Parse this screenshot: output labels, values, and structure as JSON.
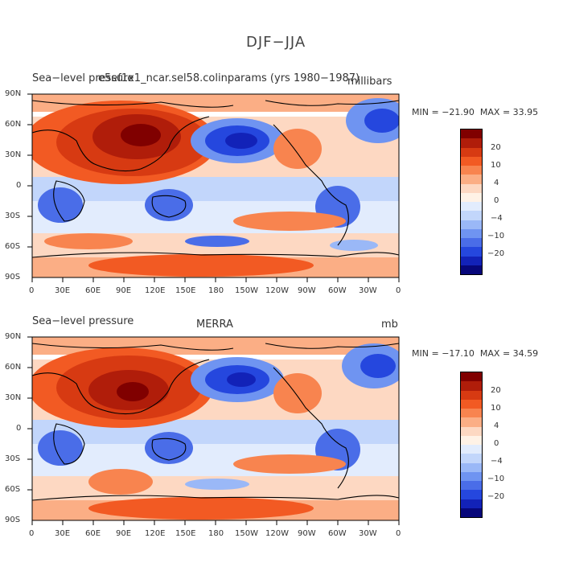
{
  "figure": {
    "title": "DJF−JJA",
    "lon_ticks": [
      "0",
      "30E",
      "60E",
      "90E",
      "120E",
      "150E",
      "180",
      "150W",
      "120W",
      "90W",
      "60W",
      "30W",
      "0"
    ],
    "lat_ticks": [
      "90N",
      "60N",
      "30N",
      "0",
      "30S",
      "60S",
      "90S"
    ],
    "colorbar": {
      "labels": [
        "20",
        "10",
        "4",
        "0",
        "−4",
        "−10",
        "−20"
      ],
      "colors": [
        "#800000",
        "#b01d0a",
        "#d73a12",
        "#f25a23",
        "#f8844f",
        "#fbae85",
        "#fdd8c2",
        "#fff2e6",
        "#e2ecfd",
        "#c2d6fb",
        "#9ab8f7",
        "#6f94f1",
        "#4a6de8",
        "#2547de",
        "#1222b8",
        "#07077a"
      ]
    }
  },
  "panels": [
    {
      "title_left": "Sea−level pressure",
      "title_center": "e5ef1x1_ncar.sel58.colinparams (yrs 1980−1987)",
      "units": "millibars",
      "min_label": "MIN = ",
      "min_value": "−21.90",
      "max_label": "MAX = ",
      "max_value": "33.95"
    },
    {
      "title_left": "Sea−level pressure",
      "title_center": "MERRA",
      "units": "mb",
      "min_label": "MIN = ",
      "min_value": "−17.10",
      "max_label": "MAX = ",
      "max_value": "34.59"
    }
  ]
}
